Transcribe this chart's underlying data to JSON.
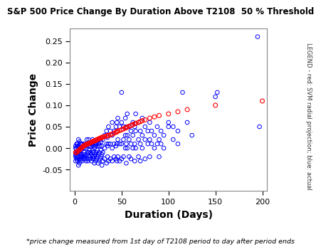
{
  "title": "S&P 500 Price Change By Duration Above T2108  50 % Threshold",
  "xlabel": "Duration (Days)",
  "ylabel": "Price Change",
  "footnote": "*price change measured from 1st day of T2108 period to day after period ends",
  "legend_text": "LEGEND - red: SVM radial projection; blue: actual",
  "xlim": [
    -5,
    205
  ],
  "ylim": [
    -0.1,
    0.28
  ],
  "yticks": [
    -0.05,
    0.0,
    0.05,
    0.1,
    0.15,
    0.2,
    0.25
  ],
  "xticks": [
    0,
    50,
    100,
    150,
    200
  ],
  "bg_color": "#ffffff",
  "blue_color": "#0000ff",
  "red_color": "#ff0000",
  "blue_points": [
    [
      1,
      -0.02
    ],
    [
      1,
      -0.015
    ],
    [
      1,
      -0.01
    ],
    [
      1,
      0.005
    ],
    [
      1,
      0.0
    ],
    [
      1,
      -0.03
    ],
    [
      2,
      -0.025
    ],
    [
      2,
      -0.02
    ],
    [
      2,
      0.01
    ],
    [
      2,
      0.0
    ],
    [
      2,
      -0.01
    ],
    [
      3,
      -0.03
    ],
    [
      3,
      -0.02
    ],
    [
      3,
      -0.01
    ],
    [
      3,
      0.005
    ],
    [
      3,
      0.01
    ],
    [
      4,
      -0.04
    ],
    [
      4,
      -0.02
    ],
    [
      4,
      -0.01
    ],
    [
      4,
      0.0
    ],
    [
      4,
      0.02
    ],
    [
      5,
      -0.035
    ],
    [
      5,
      -0.025
    ],
    [
      5,
      -0.01
    ],
    [
      5,
      0.005
    ],
    [
      5,
      0.015
    ],
    [
      6,
      -0.03
    ],
    [
      6,
      -0.015
    ],
    [
      6,
      0.0
    ],
    [
      6,
      0.01
    ],
    [
      7,
      -0.025
    ],
    [
      7,
      -0.02
    ],
    [
      7,
      -0.005
    ],
    [
      7,
      0.01
    ],
    [
      8,
      -0.03
    ],
    [
      8,
      -0.02
    ],
    [
      8,
      0.0
    ],
    [
      8,
      0.01
    ],
    [
      9,
      -0.025
    ],
    [
      9,
      -0.015
    ],
    [
      9,
      0.005
    ],
    [
      10,
      -0.02
    ],
    [
      10,
      -0.01
    ],
    [
      10,
      0.0
    ],
    [
      10,
      0.01
    ],
    [
      11,
      -0.025
    ],
    [
      11,
      -0.015
    ],
    [
      11,
      0.005
    ],
    [
      12,
      -0.03
    ],
    [
      12,
      -0.02
    ],
    [
      12,
      0.0
    ],
    [
      13,
      -0.025
    ],
    [
      13,
      -0.015
    ],
    [
      13,
      0.005
    ],
    [
      13,
      0.02
    ],
    [
      14,
      -0.03
    ],
    [
      14,
      -0.01
    ],
    [
      14,
      0.01
    ],
    [
      15,
      -0.025
    ],
    [
      15,
      -0.01
    ],
    [
      15,
      0.005
    ],
    [
      15,
      0.02
    ],
    [
      16,
      -0.02
    ],
    [
      16,
      -0.005
    ],
    [
      16,
      0.01
    ],
    [
      17,
      -0.025
    ],
    [
      17,
      -0.01
    ],
    [
      17,
      0.005
    ],
    [
      18,
      -0.03
    ],
    [
      18,
      -0.015
    ],
    [
      18,
      0.01
    ],
    [
      19,
      -0.02
    ],
    [
      19,
      -0.005
    ],
    [
      19,
      0.01
    ],
    [
      19,
      0.02
    ],
    [
      20,
      -0.025
    ],
    [
      20,
      -0.01
    ],
    [
      20,
      0.005
    ],
    [
      20,
      0.015
    ],
    [
      21,
      -0.035
    ],
    [
      21,
      -0.02
    ],
    [
      21,
      0.0
    ],
    [
      21,
      0.01
    ],
    [
      22,
      -0.03
    ],
    [
      22,
      -0.015
    ],
    [
      22,
      0.005
    ],
    [
      23,
      -0.025
    ],
    [
      23,
      -0.01
    ],
    [
      23,
      0.01
    ],
    [
      24,
      -0.02
    ],
    [
      24,
      -0.005
    ],
    [
      24,
      0.015
    ],
    [
      25,
      -0.035
    ],
    [
      25,
      -0.015
    ],
    [
      25,
      0.005
    ],
    [
      26,
      -0.03
    ],
    [
      26,
      -0.01
    ],
    [
      26,
      0.01
    ],
    [
      27,
      -0.025
    ],
    [
      27,
      0.005
    ],
    [
      27,
      0.02
    ],
    [
      28,
      -0.02
    ],
    [
      28,
      -0.005
    ],
    [
      28,
      0.015
    ],
    [
      29,
      -0.04
    ],
    [
      29,
      -0.015
    ],
    [
      29,
      0.005
    ],
    [
      30,
      -0.03
    ],
    [
      30,
      -0.01
    ],
    [
      30,
      0.02
    ],
    [
      32,
      -0.025
    ],
    [
      32,
      0.0
    ],
    [
      32,
      0.03
    ],
    [
      34,
      -0.035
    ],
    [
      34,
      0.01
    ],
    [
      34,
      0.04
    ],
    [
      35,
      -0.02
    ],
    [
      35,
      0.005
    ],
    [
      35,
      0.025
    ],
    [
      36,
      -0.03
    ],
    [
      36,
      0.01
    ],
    [
      36,
      0.05
    ],
    [
      38,
      -0.025
    ],
    [
      38,
      0.01
    ],
    [
      38,
      0.04
    ],
    [
      40,
      -0.03
    ],
    [
      40,
      0.0
    ],
    [
      40,
      0.03
    ],
    [
      40,
      0.06
    ],
    [
      42,
      -0.02
    ],
    [
      42,
      0.01
    ],
    [
      42,
      0.04
    ],
    [
      44,
      -0.025
    ],
    [
      44,
      0.005
    ],
    [
      44,
      0.05
    ],
    [
      45,
      -0.03
    ],
    [
      45,
      0.01
    ],
    [
      45,
      0.06
    ],
    [
      46,
      -0.02
    ],
    [
      46,
      0.02
    ],
    [
      46,
      0.07
    ],
    [
      48,
      -0.03
    ],
    [
      48,
      0.01
    ],
    [
      48,
      0.05
    ],
    [
      50,
      -0.025
    ],
    [
      50,
      0.01
    ],
    [
      50,
      0.06
    ],
    [
      50,
      0.13
    ],
    [
      52,
      -0.02
    ],
    [
      52,
      0.02
    ],
    [
      52,
      0.05
    ],
    [
      54,
      0.0
    ],
    [
      54,
      0.03
    ],
    [
      54,
      0.07
    ],
    [
      55,
      -0.035
    ],
    [
      55,
      0.01
    ],
    [
      55,
      0.05
    ],
    [
      56,
      0.0
    ],
    [
      56,
      0.03
    ],
    [
      56,
      0.08
    ],
    [
      58,
      -0.02
    ],
    [
      58,
      0.02
    ],
    [
      58,
      0.05
    ],
    [
      60,
      -0.025
    ],
    [
      60,
      0.01
    ],
    [
      60,
      0.04
    ],
    [
      62,
      0.0
    ],
    [
      62,
      0.03
    ],
    [
      62,
      0.06
    ],
    [
      64,
      -0.03
    ],
    [
      64,
      0.01
    ],
    [
      64,
      0.05
    ],
    [
      65,
      0.0
    ],
    [
      65,
      0.04
    ],
    [
      65,
      0.08
    ],
    [
      68,
      -0.02
    ],
    [
      68,
      0.02
    ],
    [
      68,
      0.06
    ],
    [
      70,
      -0.03
    ],
    [
      70,
      0.01
    ],
    [
      70,
      0.04
    ],
    [
      72,
      0.0
    ],
    [
      72,
      0.03
    ],
    [
      72,
      0.07
    ],
    [
      75,
      -0.025
    ],
    [
      75,
      0.02
    ],
    [
      75,
      0.05
    ],
    [
      78,
      0.01
    ],
    [
      78,
      0.04
    ],
    [
      80,
      -0.02
    ],
    [
      80,
      0.02
    ],
    [
      80,
      0.06
    ],
    [
      82,
      0.01
    ],
    [
      82,
      0.04
    ],
    [
      85,
      0.0
    ],
    [
      85,
      0.03
    ],
    [
      88,
      0.01
    ],
    [
      88,
      0.05
    ],
    [
      90,
      -0.02
    ],
    [
      90,
      0.02
    ],
    [
      92,
      0.01
    ],
    [
      92,
      0.04
    ],
    [
      95,
      0.0
    ],
    [
      95,
      0.03
    ],
    [
      100,
      0.05
    ],
    [
      100,
      0.06
    ],
    [
      105,
      0.02
    ],
    [
      105,
      0.05
    ],
    [
      110,
      0.01
    ],
    [
      110,
      0.04
    ],
    [
      115,
      0.13
    ],
    [
      120,
      0.06
    ],
    [
      125,
      0.03
    ],
    [
      150,
      0.12
    ],
    [
      152,
      0.13
    ],
    [
      195,
      0.26
    ],
    [
      197,
      0.05
    ]
  ],
  "red_points": [
    [
      1,
      -0.01
    ],
    [
      2,
      -0.01
    ],
    [
      3,
      -0.008
    ],
    [
      4,
      -0.006
    ],
    [
      5,
      -0.004
    ],
    [
      6,
      -0.002
    ],
    [
      7,
      0.0
    ],
    [
      8,
      0.002
    ],
    [
      9,
      0.004
    ],
    [
      10,
      0.006
    ],
    [
      11,
      0.007
    ],
    [
      12,
      0.008
    ],
    [
      13,
      0.009
    ],
    [
      14,
      0.01
    ],
    [
      15,
      0.011
    ],
    [
      16,
      0.012
    ],
    [
      17,
      0.013
    ],
    [
      18,
      0.014
    ],
    [
      19,
      0.015
    ],
    [
      20,
      0.016
    ],
    [
      21,
      0.017
    ],
    [
      22,
      0.018
    ],
    [
      23,
      0.019
    ],
    [
      24,
      0.02
    ],
    [
      25,
      0.021
    ],
    [
      26,
      0.022
    ],
    [
      27,
      0.023
    ],
    [
      28,
      0.024
    ],
    [
      29,
      0.025
    ],
    [
      30,
      0.026
    ],
    [
      32,
      0.027
    ],
    [
      34,
      0.028
    ],
    [
      35,
      0.029
    ],
    [
      36,
      0.03
    ],
    [
      38,
      0.031
    ],
    [
      40,
      0.033
    ],
    [
      42,
      0.035
    ],
    [
      44,
      0.037
    ],
    [
      45,
      0.038
    ],
    [
      46,
      0.04
    ],
    [
      48,
      0.041
    ],
    [
      50,
      0.043
    ],
    [
      52,
      0.045
    ],
    [
      54,
      0.047
    ],
    [
      55,
      0.048
    ],
    [
      56,
      0.049
    ],
    [
      58,
      0.051
    ],
    [
      60,
      0.053
    ],
    [
      62,
      0.055
    ],
    [
      64,
      0.057
    ],
    [
      65,
      0.058
    ],
    [
      68,
      0.06
    ],
    [
      70,
      0.062
    ],
    [
      72,
      0.064
    ],
    [
      75,
      0.066
    ],
    [
      80,
      0.07
    ],
    [
      85,
      0.073
    ],
    [
      90,
      0.076
    ],
    [
      100,
      0.08
    ],
    [
      110,
      0.085
    ],
    [
      120,
      0.09
    ],
    [
      150,
      0.1
    ],
    [
      200,
      0.11
    ]
  ]
}
